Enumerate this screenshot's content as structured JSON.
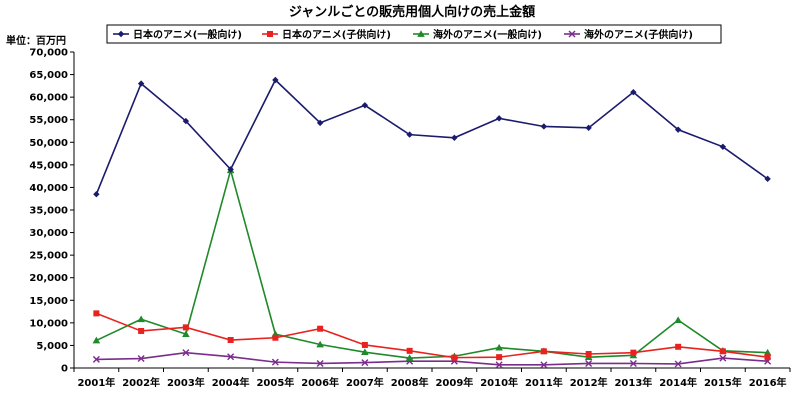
{
  "chart_data": {
    "type": "line",
    "title": "ジャンルごとの販売用個人向けの売上金額",
    "unit_label": "単位：百万円",
    "categories": [
      "2001年",
      "2002年",
      "2003年",
      "2004年",
      "2005年",
      "2006年",
      "2007年",
      "2008年",
      "2009年",
      "2010年",
      "2011年",
      "2012年",
      "2013年",
      "2014年",
      "2015年",
      "2016年"
    ],
    "ylim": [
      0,
      70000
    ],
    "yticks": [
      "0",
      "5,000",
      "10,000",
      "15,000",
      "20,000",
      "25,000",
      "30,000",
      "35,000",
      "40,000",
      "45,000",
      "50,000",
      "55,000",
      "60,000",
      "65,000",
      "70,000"
    ],
    "grid": false,
    "legend_position": "top",
    "series": [
      {
        "name": "日本のアニメ(一般向け)",
        "color": "#1b1b6e",
        "marker": "diamond",
        "values": [
          38500,
          63000,
          54700,
          44000,
          63800,
          54300,
          58200,
          51700,
          51000,
          55300,
          53500,
          53200,
          61100,
          52800,
          49000,
          41900
        ]
      },
      {
        "name": "日本のアニメ(子供向け)",
        "color": "#e8231f",
        "marker": "square",
        "values": [
          12100,
          8200,
          9000,
          6200,
          6700,
          8700,
          5100,
          3800,
          2300,
          2400,
          3700,
          3100,
          3400,
          4700,
          3700,
          2400
        ]
      },
      {
        "name": "海外のアニメ(一般向け)",
        "color": "#1f8a2a",
        "marker": "triangle",
        "values": [
          6100,
          10800,
          7500,
          43800,
          7500,
          5200,
          3500,
          2200,
          2600,
          4500,
          3700,
          2400,
          2800,
          10600,
          3800,
          3400
        ]
      },
      {
        "name": "海外のアニメ(子供向け)",
        "color": "#7a2d8c",
        "marker": "x",
        "values": [
          1900,
          2100,
          3400,
          2500,
          1300,
          1000,
          1200,
          1500,
          1500,
          700,
          700,
          1000,
          1000,
          900,
          2200,
          1500
        ]
      }
    ]
  }
}
